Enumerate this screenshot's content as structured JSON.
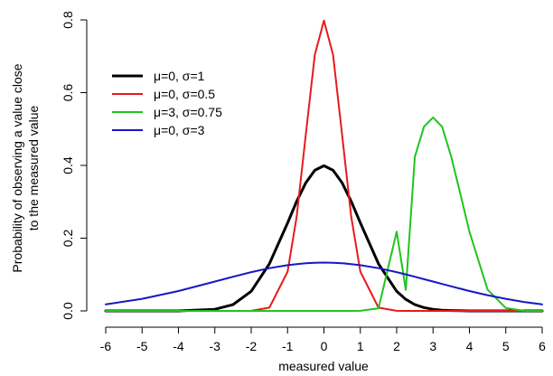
{
  "chart_data": {
    "type": "line",
    "xlabel": "measured value",
    "ylabel_lines": [
      "Probability of observing a value close",
      "to the measured value"
    ],
    "xlim": [
      -6,
      6
    ],
    "ylim": [
      0,
      0.8
    ],
    "xticks": [
      "-6",
      "-5",
      "-4",
      "-3",
      "-2",
      "-1",
      "0",
      "1",
      "2",
      "3",
      "4",
      "5",
      "6"
    ],
    "yticks": [
      "0.0",
      "0.2",
      "0.4",
      "0.6",
      "0.8"
    ],
    "grid": false,
    "legend_position": "top-left",
    "x": [
      -6,
      -5,
      -4,
      -3,
      -2.5,
      -2,
      -1.5,
      -1,
      -0.75,
      -0.5,
      -0.25,
      0,
      0.25,
      0.5,
      0.75,
      1,
      1.5,
      2,
      2.25,
      2.5,
      2.75,
      3,
      3.25,
      3.5,
      3.75,
      4,
      4.5,
      5,
      5.5,
      6
    ],
    "series": [
      {
        "name": "μ=0, σ=1",
        "color": "#000000",
        "width": 3,
        "values": [
          0.0,
          0.0,
          0.0001,
          0.0044,
          0.0175,
          0.054,
          0.1295,
          0.242,
          0.3011,
          0.3521,
          0.3867,
          0.3989,
          0.3867,
          0.3521,
          0.3011,
          0.242,
          0.1295,
          0.054,
          0.0317,
          0.0175,
          0.0091,
          0.0044,
          0.002,
          0.0009,
          0.0004,
          0.0001,
          0.0,
          0.0,
          0.0,
          0.0
        ]
      },
      {
        "name": "μ=0, σ=0.5",
        "color": "#e8191c",
        "width": 2,
        "values": [
          0.0,
          0.0,
          0.0,
          0.0,
          0.0,
          0.0003,
          0.0089,
          0.108,
          0.259,
          0.4839,
          0.7041,
          0.7979,
          0.7041,
          0.4839,
          0.259,
          0.108,
          0.0089,
          0.0003,
          0.0,
          0.0,
          0.0,
          0.0,
          0.0,
          0.0,
          0.0,
          0.0,
          0.0,
          0.0,
          0.0,
          0.0
        ]
      },
      {
        "name": "μ=3, σ=0.75",
        "color": "#1fc51f",
        "width": 2,
        "values": [
          0.0,
          0.0,
          0.0,
          0.0,
          0.0,
          0.0,
          0.0,
          0.0,
          0.0,
          0.0,
          0.0,
          0.0,
          0.0,
          0.0,
          0.0001,
          0.0002,
          0.0071,
          0.218,
          0.058,
          0.4237,
          0.5063,
          0.5319,
          0.5063,
          0.4237,
          0.3226,
          0.218,
          0.0587,
          0.008,
          0.0003,
          0.0
        ]
      },
      {
        "name": "μ=0, σ=3",
        "color": "#1717c8",
        "width": 2,
        "values": [
          0.018,
          0.0332,
          0.0547,
          0.0807,
          0.094,
          0.1065,
          0.1174,
          0.1258,
          0.1288,
          0.1311,
          0.1325,
          0.133,
          0.1325,
          0.1311,
          0.1288,
          0.1258,
          0.1174,
          0.1065,
          0.1003,
          0.094,
          0.0873,
          0.0807,
          0.0741,
          0.0676,
          0.0611,
          0.0547,
          0.0432,
          0.0332,
          0.0247,
          0.018
        ]
      }
    ]
  }
}
